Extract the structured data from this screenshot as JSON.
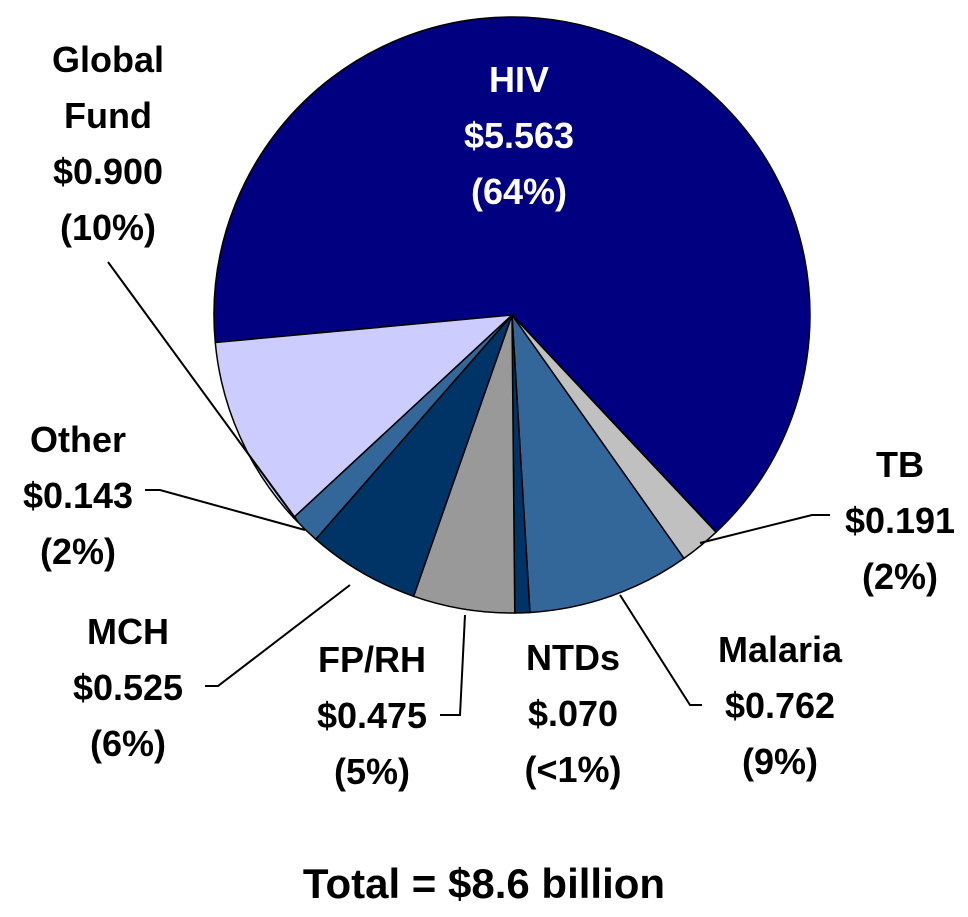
{
  "chart_data": {
    "type": "pie",
    "categories": [
      "HIV",
      "TB",
      "Malaria",
      "NTDs",
      "FP/RH",
      "MCH",
      "Other",
      "Global Fund"
    ],
    "values": [
      5.563,
      0.191,
      0.762,
      0.07,
      0.475,
      0.525,
      0.143,
      0.9
    ],
    "value_labels": [
      "$5.563",
      "$0.191",
      "$0.762",
      "$.070",
      "$0.475",
      "$0.525",
      "$0.143",
      "$0.900"
    ],
    "percent_labels": [
      "(64%)",
      "(2%)",
      "(9%)",
      "(<1%)",
      "(5%)",
      "(6%)",
      "(2%)",
      "(10%)"
    ],
    "colors": [
      "#000080",
      "#c0c0c0",
      "#336699",
      "#003366",
      "#999999",
      "#003366",
      "#336699",
      "#ccccff"
    ],
    "annotation": "Total = $8.6 billion"
  }
}
